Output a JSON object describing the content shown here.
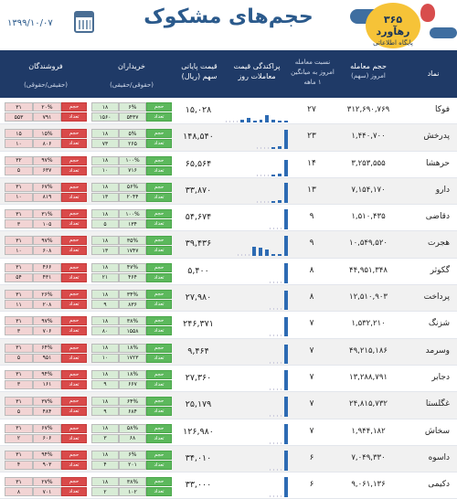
{
  "header": {
    "title": "حجم‌های مشکوک",
    "date": "۱۳۹۹/۱۰/۰۷",
    "logo_text": "۳۶۵ رهآورد",
    "logo_sub": "پایگاه اطلاعاتی"
  },
  "columns": {
    "symbol": "نماد",
    "volume": "حجم معامله",
    "volume_sub": "امروز (سهم)",
    "ratio": "نسبت معامله",
    "ratio_sub1": "امروز به میانگین",
    "ratio_sub2": "۱ ماهه",
    "dispersion": "پراکندگی قیمت",
    "dispersion_sub": "معاملات روز",
    "price": "قیمت پایانی",
    "price_sub": "سهم (ریال)",
    "buyers": "خریداران",
    "buyers_sub": "(حقوقی/حقیقی)",
    "sellers": "فروشندگان",
    "sellers_sub": "(حقیقی/حقوقی)"
  },
  "labels": {
    "volume": "حجم",
    "count": "تعداد"
  },
  "rows": [
    {
      "symbol": "فوکا",
      "volume": "۳۱۲,۶۹۰,۷۶۹",
      "days": "۲۷",
      "price": "۱۵,۰۲۸",
      "spark": [
        0.15,
        0.2,
        0.1,
        0.15,
        0.35,
        0.15,
        0.1,
        0.08
      ],
      "buy_vol": "۶%",
      "buy_vol2": "۱۸",
      "buy_cnt": "۵۴۳۷",
      "buy_cnt2": "۱۵۶۰",
      "sell_vol": "۲۰%",
      "sell_vol2": "۳۱",
      "sell_cnt": "۷۹۱",
      "sell_cnt2": "۵۵۳"
    },
    {
      "symbol": "پدرخش",
      "volume": "۱,۴۴۰,۷۰۰",
      "days": "۲۳",
      "price": "۱۴۸,۵۴۰",
      "spark": [
        0.1,
        0.12,
        0.9
      ],
      "buy_vol": "۵%",
      "buy_vol2": "۱۸",
      "buy_cnt": "۲۶۵",
      "buy_cnt2": "۷۳",
      "sell_vol": "۱۵%",
      "sell_vol2": "۱۵",
      "sell_cnt": "۸۰۶",
      "sell_cnt2": "۱۰"
    },
    {
      "symbol": "حرهشا",
      "volume": "۳,۲۵۳,۵۵۵",
      "days": "۱۴",
      "price": "۶۵,۵۶۴",
      "spark": [
        0.1,
        0.12,
        0.8
      ],
      "buy_vol": "۱۰۰%",
      "buy_vol2": "۱۸",
      "buy_cnt": "۷۱۶",
      "buy_cnt2": "۱۰",
      "sell_vol": "۹۷%",
      "sell_vol2": "۳۲",
      "sell_cnt": "۶۳۷",
      "sell_cnt2": "۵"
    },
    {
      "symbol": "دارو",
      "volume": "۷,۱۵۴,۱۷۰",
      "days": "۱۳",
      "price": "۳۳,۸۷۰",
      "spark": [
        0.1,
        0.12,
        0.95
      ],
      "buy_vol": "۵۶%",
      "buy_vol2": "۱۸",
      "buy_cnt": "۲۰۴۴",
      "buy_cnt2": "۱۳",
      "sell_vol": "۶۷%",
      "sell_vol2": "۳۱",
      "sell_cnt": "۸۱۹",
      "sell_cnt2": "۱۰"
    },
    {
      "symbol": "دقاضی",
      "volume": "۱,۵۱۰,۴۳۵",
      "days": "۹",
      "price": "۵۴,۶۷۴",
      "spark": [
        0.95
      ],
      "buy_vol": "۱۰۰%",
      "buy_vol2": "۱۸",
      "buy_cnt": "۱۳۴",
      "buy_cnt2": "۵",
      "sell_vol": "۳۱%",
      "sell_vol2": "۳۱",
      "sell_cnt": "۱۰۵",
      "sell_cnt2": "۳"
    },
    {
      "symbol": "هجرت",
      "volume": "۱۰,۵۴۹,۵۲۰",
      "days": "۹",
      "price": "۳۹,۴۳۶",
      "spark": [
        0.45,
        0.4,
        0.3,
        0.1,
        0.1,
        0.95
      ],
      "buy_vol": "۳۵%",
      "buy_vol2": "۱۸",
      "buy_cnt": "۱۷۴۷",
      "buy_cnt2": "۱۳",
      "sell_vol": "۹۷%",
      "sell_vol2": "۳۱",
      "sell_cnt": "۶۰۸",
      "sell_cnt2": "۱۰"
    },
    {
      "symbol": "گکوثر",
      "volume": "۴۴,۹۵۱,۳۴۸",
      "days": "۸",
      "price": "۵,۴۰۰",
      "spark": [
        0.95
      ],
      "buy_vol": "۴۷%",
      "buy_vol2": "۱۸",
      "buy_cnt": "۴۶۴",
      "buy_cnt2": "۲۱",
      "sell_vol": "۴۶۶",
      "sell_vol2": "۳۱",
      "sell_cnt": "۴۳۱",
      "sell_cnt2": "۵۴"
    },
    {
      "symbol": "پرداخت",
      "volume": "۱۲,۵۱۰,۹۰۳",
      "days": "۸",
      "price": "۲۷,۹۸۰",
      "spark": [
        0.9
      ],
      "buy_vol": "۳۴%",
      "buy_vol2": "۱۸",
      "buy_cnt": "۸۳۶",
      "buy_cnt2": "۹",
      "sell_vol": "۲۶%",
      "sell_vol2": "۳۱",
      "sell_cnt": "۲۰۸",
      "sell_cnt2": "۱۱"
    },
    {
      "symbol": "شزنگ",
      "volume": "۱,۵۳۲,۲۱۰",
      "days": "۷",
      "price": "۲۴۶,۳۷۱",
      "spark": [
        0.9
      ],
      "buy_vol": "۳۸%",
      "buy_vol2": "۱۸",
      "buy_cnt": "۱۵۵۸",
      "buy_cnt2": "۸۰",
      "sell_vol": "۹۷%",
      "sell_vol2": "۳۱",
      "sell_cnt": "۷۰۶",
      "sell_cnt2": "۳"
    },
    {
      "symbol": "وسرمد",
      "volume": "۴۹,۲۱۵,۱۸۶",
      "days": "۷",
      "price": "۹,۴۶۴",
      "spark": [
        0.9
      ],
      "buy_vol": "۱۸%",
      "buy_vol2": "۱۸",
      "buy_cnt": "۱۷۲۳",
      "buy_cnt2": "۱۰",
      "sell_vol": "۶۴%",
      "sell_vol2": "۳۱",
      "sell_cnt": "۹۵۱",
      "sell_cnt2": "۵"
    },
    {
      "symbol": "دجابر",
      "volume": "۱۳,۲۸۸,۷۹۱",
      "days": "۷",
      "price": "۲۷,۳۶۰",
      "spark": [
        0.95
      ],
      "buy_vol": "۱۸%",
      "buy_vol2": "۱۸",
      "buy_cnt": "۶۶۷",
      "buy_cnt2": "۹",
      "sell_vol": "۹۴%",
      "sell_vol2": "۳۱",
      "sell_cnt": "۱۶۱",
      "sell_cnt2": "۳"
    },
    {
      "symbol": "غگلستا",
      "volume": "۲۴,۸۱۵,۷۳۲",
      "days": "۷",
      "price": "۲۵,۱۷۹",
      "spark": [
        0.95
      ],
      "buy_vol": "۶۴%",
      "buy_vol2": "۱۸",
      "buy_cnt": "۶۸۴",
      "buy_cnt2": "۹",
      "sell_vol": "۳۷%",
      "sell_vol2": "۳۱",
      "sell_cnt": "۴۸۴",
      "sell_cnt2": "۵"
    },
    {
      "symbol": "سخاش",
      "volume": "۱,۹۴۴,۱۸۲",
      "days": "۷",
      "price": "۱۲۶,۹۸۰",
      "spark": [
        0.95
      ],
      "buy_vol": "۵۸%",
      "buy_vol2": "۱۸",
      "buy_cnt": "۶۸",
      "buy_cnt2": "۳",
      "sell_vol": "۶۷%",
      "sell_vol2": "۳۱",
      "sell_cnt": "۶۰۶",
      "sell_cnt2": "۲"
    },
    {
      "symbol": "داسوه",
      "volume": "۷,۰۴۹,۳۳۰",
      "days": "۶",
      "price": "۳۴,۰۱۰",
      "spark": [
        0.95
      ],
      "buy_vol": "۶%",
      "buy_vol2": "۱۸",
      "buy_cnt": "۲۰۱",
      "buy_cnt2": "۴",
      "sell_vol": "۹۴%",
      "sell_vol2": "۳۱",
      "sell_cnt": "۹۰۳",
      "sell_cnt2": "۴"
    },
    {
      "symbol": "دکیمی",
      "volume": "۹,۰۶۱,۱۳۶",
      "days": "۶",
      "price": "۳۳,۰۰۰",
      "spark": [
        0.95
      ],
      "buy_vol": "۳۸%",
      "buy_vol2": "۱۸",
      "buy_cnt": "۱۰۲",
      "buy_cnt2": "۲",
      "sell_vol": "۲۷%",
      "sell_vol2": "۳۱",
      "sell_cnt": "۷۰۱",
      "sell_cnt2": "۸"
    }
  ]
}
